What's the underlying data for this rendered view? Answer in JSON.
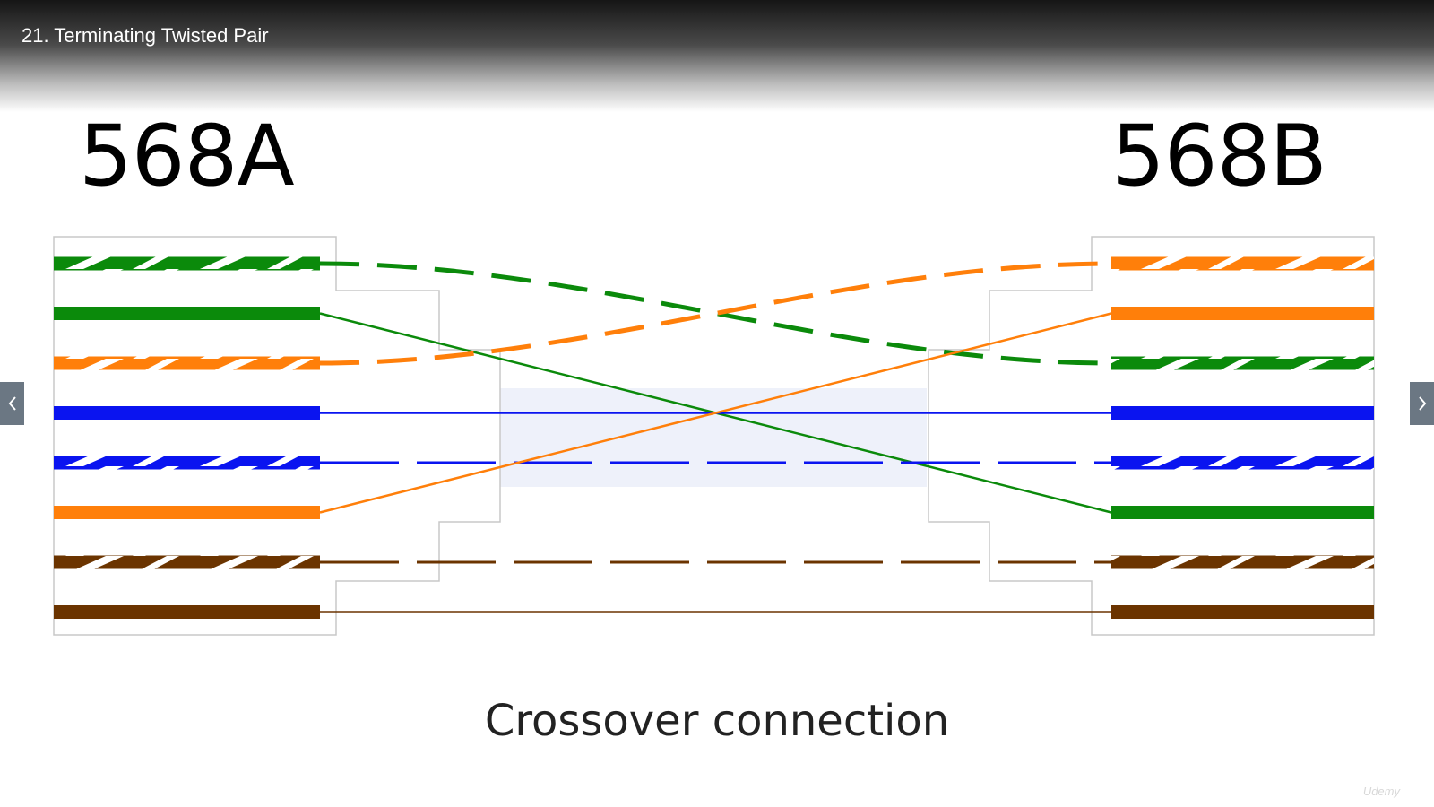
{
  "header": {
    "lecture_title": "21. Terminating Twisted Pair"
  },
  "diagram": {
    "left_standard": "568A",
    "right_standard": "568B",
    "caption": "Crossover connection",
    "colors": {
      "green": "#0b8a0b",
      "orange": "#ff7f0a",
      "blue": "#0a14f0",
      "brown": "#6b3400",
      "guide_box": "#eef1fa",
      "outline": "#c8c8c8"
    },
    "left_pins": [
      {
        "color": "green",
        "striped": true
      },
      {
        "color": "green",
        "striped": false
      },
      {
        "color": "orange",
        "striped": true
      },
      {
        "color": "blue",
        "striped": false
      },
      {
        "color": "blue",
        "striped": true
      },
      {
        "color": "orange",
        "striped": false
      },
      {
        "color": "brown",
        "striped": true
      },
      {
        "color": "brown",
        "striped": false
      }
    ],
    "right_pins": [
      {
        "color": "orange",
        "striped": true
      },
      {
        "color": "orange",
        "striped": false
      },
      {
        "color": "green",
        "striped": true
      },
      {
        "color": "blue",
        "striped": false
      },
      {
        "color": "blue",
        "striped": true
      },
      {
        "color": "green",
        "striped": false
      },
      {
        "color": "brown",
        "striped": true
      },
      {
        "color": "brown",
        "striped": false
      }
    ],
    "connections": [
      {
        "from_pin": 1,
        "to_pin": 3,
        "color": "green",
        "style": "dashed"
      },
      {
        "from_pin": 2,
        "to_pin": 6,
        "color": "green",
        "style": "solid"
      },
      {
        "from_pin": 3,
        "to_pin": 1,
        "color": "orange",
        "style": "dashed"
      },
      {
        "from_pin": 4,
        "to_pin": 4,
        "color": "blue",
        "style": "solid"
      },
      {
        "from_pin": 5,
        "to_pin": 5,
        "color": "blue",
        "style": "dashed"
      },
      {
        "from_pin": 6,
        "to_pin": 2,
        "color": "orange",
        "style": "solid"
      },
      {
        "from_pin": 7,
        "to_pin": 7,
        "color": "brown",
        "style": "dashed"
      },
      {
        "from_pin": 8,
        "to_pin": 8,
        "color": "brown",
        "style": "solid"
      }
    ]
  },
  "navigation": {
    "prev_icon": "chevron-left-icon",
    "next_icon": "chevron-right-icon"
  },
  "watermark": "Udemy"
}
